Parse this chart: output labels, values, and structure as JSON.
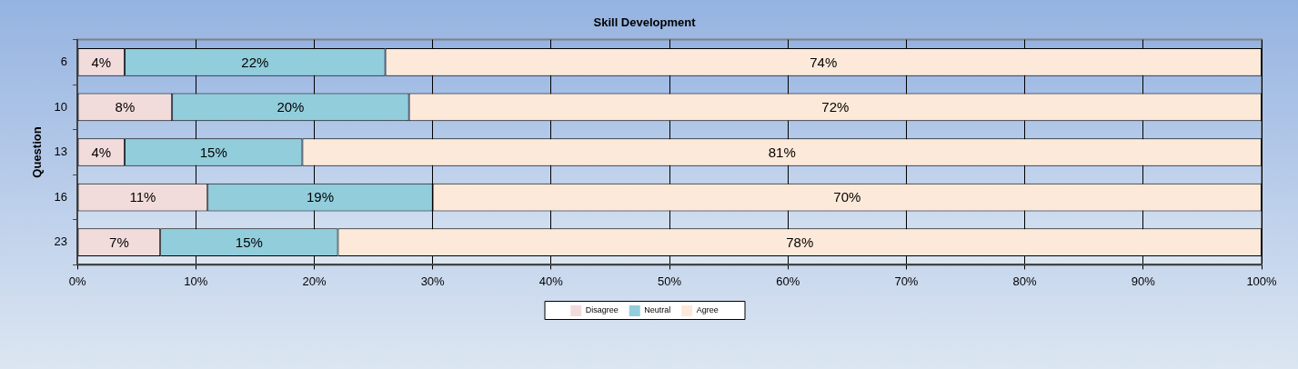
{
  "chart_data": {
    "type": "bar",
    "orientation": "horizontal",
    "stacked": true,
    "title": "Skill Development",
    "ylabel": "Question",
    "categories": [
      "6",
      "10",
      "13",
      "16",
      "23"
    ],
    "series": [
      {
        "name": "Disagree",
        "color": "#f2dcdb",
        "values": [
          4,
          8,
          4,
          11,
          7
        ],
        "value_labels": [
          "4%",
          "8%",
          "4%",
          "11%",
          "7%"
        ]
      },
      {
        "name": "Neutral",
        "color": "#92cddc",
        "values": [
          22,
          20,
          15,
          19,
          15
        ],
        "value_labels": [
          "22%",
          "20%",
          "15%",
          "19%",
          "15%"
        ]
      },
      {
        "name": "Agree",
        "color": "#fde9d9",
        "values": [
          74,
          72,
          81,
          70,
          78
        ],
        "value_labels": [
          "74%",
          "72%",
          "81%",
          "70%",
          "78%"
        ]
      }
    ],
    "xlim": [
      0,
      100
    ],
    "xticks": [
      {
        "value": 0,
        "label": "0%"
      },
      {
        "value": 10,
        "label": "10%"
      },
      {
        "value": 20,
        "label": "20%"
      },
      {
        "value": 30,
        "label": "30%"
      },
      {
        "value": 40,
        "label": "40%"
      },
      {
        "value": 50,
        "label": "50%"
      },
      {
        "value": 60,
        "label": "60%"
      },
      {
        "value": 70,
        "label": "70%"
      },
      {
        "value": 80,
        "label": "80%"
      },
      {
        "value": 90,
        "label": "90%"
      },
      {
        "value": 100,
        "label": "100%"
      }
    ],
    "grid": "x",
    "legend": "bottom"
  }
}
